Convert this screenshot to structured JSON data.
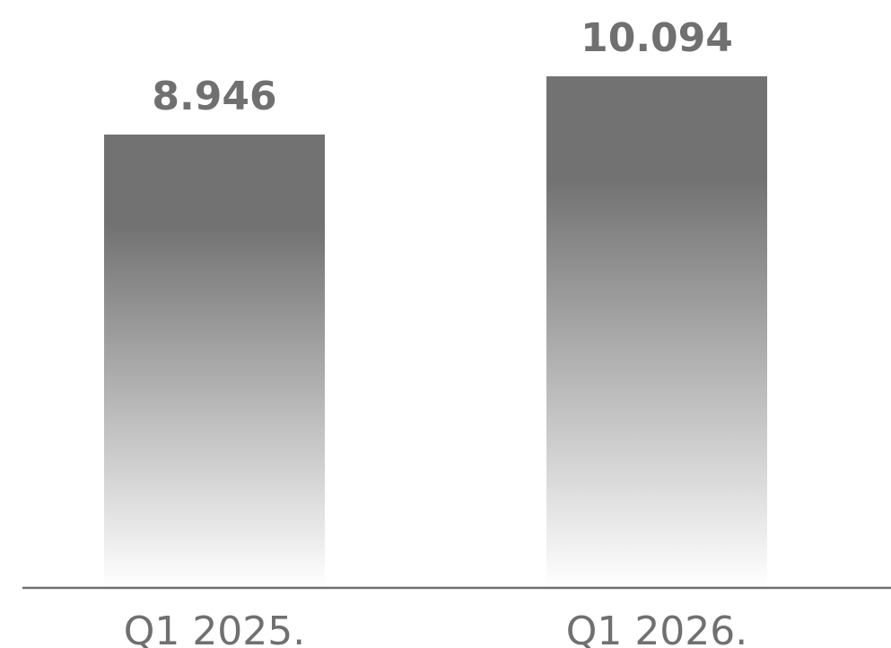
{
  "chart_data": {
    "type": "bar",
    "categories": [
      "Q1 2025.",
      "Q1 2026."
    ],
    "values": [
      8.946,
      10.094
    ],
    "value_labels": [
      "8.946",
      "10.094"
    ],
    "title": "",
    "xlabel": "",
    "ylabel": "",
    "ylim": [
      0,
      11.6
    ],
    "grid": false,
    "legend": "none",
    "colors": {
      "bar_top": "#727272",
      "bar_bottom": "#ffffff",
      "axis": "#707070",
      "text": "#707070"
    }
  }
}
